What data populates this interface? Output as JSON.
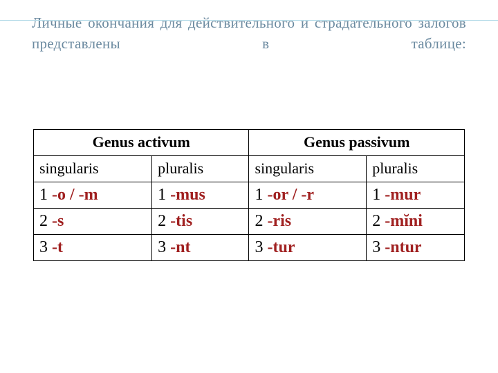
{
  "title": "Личные окончания для действительного и страдательного залогов представлены в таблице:",
  "colors": {
    "title_color": "#6b8aa0",
    "ending_color": "#a02020",
    "text_color": "#000000",
    "border_color": "#000000",
    "bg_color": "#ffffff",
    "accent_line": "#b6dce8"
  },
  "typography": {
    "font_family": "Times New Roman",
    "title_fontsize": 21,
    "header_fontsize": 22,
    "cell_fontsize": 24
  },
  "table": {
    "type": "table",
    "groups": [
      "Genus activum",
      "Genus passivum"
    ],
    "columns": [
      "singularis",
      "pluralis",
      "singularis",
      "pluralis"
    ],
    "rows": [
      [
        {
          "n": "1",
          "e": "-o / -m"
        },
        {
          "n": "1",
          "e": "-mus"
        },
        {
          "n": "1",
          "e": "-or / -r"
        },
        {
          "n": "1",
          "e": "-mur"
        }
      ],
      [
        {
          "n": "2",
          "e": "-s"
        },
        {
          "n": "2",
          "e": "-tis"
        },
        {
          "n": "2",
          "e": "-ris"
        },
        {
          "n": "2",
          "e": "-mĭni"
        }
      ],
      [
        {
          "n": "3",
          "e": "-t"
        },
        {
          "n": "3",
          "e": "-nt"
        },
        {
          "n": "3",
          "e": "-tur"
        },
        {
          "n": "3",
          "e": "-ntur"
        }
      ]
    ]
  }
}
